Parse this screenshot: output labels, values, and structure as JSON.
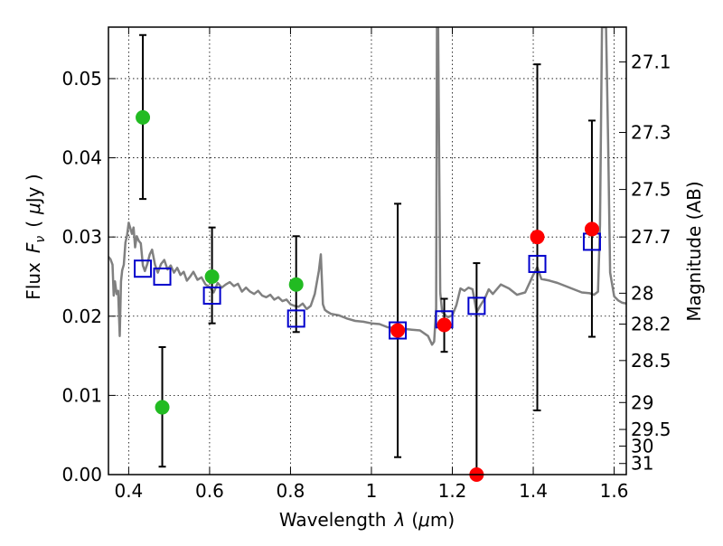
{
  "chart_data": {
    "type": "scatter",
    "xlabel": "Wavelength",
    "xlabel_symbol": "λ",
    "xlabel_unit_open": "(",
    "xlabel_unit_mu": "μ",
    "xlabel_unit_rest": "m)",
    "ylabel": "Flux",
    "ylabel_symbol": "F",
    "ylabel_subscript": "ν",
    "ylabel_unit_open": "(",
    "ylabel_unit_mu": "μ",
    "ylabel_unit_rest": "Jy )",
    "y2label": "Magnitude (AB)",
    "xlim": [
      0.35,
      1.63
    ],
    "ylim": [
      0.0,
      0.0565
    ],
    "grid": true,
    "x_ticks": [
      0.4,
      0.6,
      0.8,
      1.0,
      1.2,
      1.4,
      1.6
    ],
    "x_tick_labels": [
      "0.4",
      "0.6",
      "0.8",
      "1",
      "1.2",
      "1.4",
      "1.6"
    ],
    "y_ticks": [
      0.0,
      0.01,
      0.02,
      0.03,
      0.04,
      0.05
    ],
    "y_tick_labels": [
      "0.00",
      "0.01",
      "0.02",
      "0.03",
      "0.04",
      "0.05"
    ],
    "y2_ticks": [
      {
        "label": "27.1",
        "flux": 0.0521
      },
      {
        "label": "27.3",
        "flux": 0.0432
      },
      {
        "label": "27.5",
        "flux": 0.036
      },
      {
        "label": "27.7",
        "flux": 0.03
      },
      {
        "label": "28",
        "flux": 0.0229
      },
      {
        "label": "28.2",
        "flux": 0.019
      },
      {
        "label": "28.5",
        "flux": 0.0144
      },
      {
        "label": "29",
        "flux": 0.0091
      },
      {
        "label": "29.5",
        "flux": 0.0057
      },
      {
        "label": "30",
        "flux": 0.0036
      },
      {
        "label": "31",
        "flux": 0.0014
      }
    ],
    "series": [
      {
        "marker": "circle",
        "color": "#22bb22",
        "points": [
          {
            "x": 0.435,
            "y": 0.0451,
            "lo": 0.0348,
            "hi": 0.0555
          },
          {
            "x": 0.483,
            "y": 0.0085,
            "lo": 0.001,
            "hi": 0.0161
          },
          {
            "x": 0.606,
            "y": 0.025,
            "lo": 0.0191,
            "hi": 0.0312
          },
          {
            "x": 0.814,
            "y": 0.024,
            "lo": 0.018,
            "hi": 0.0301
          }
        ]
      },
      {
        "marker": "circle",
        "color": "#ff0000",
        "points": [
          {
            "x": 1.065,
            "y": 0.0182,
            "lo": 0.0022,
            "hi": 0.0342
          },
          {
            "x": 1.18,
            "y": 0.0189,
            "lo": 0.0155,
            "hi": 0.0222
          },
          {
            "x": 1.26,
            "y": 0.0,
            "lo": 0.0,
            "hi": 0.0267
          },
          {
            "x": 1.41,
            "y": 0.03,
            "lo": 0.0081,
            "hi": 0.0518
          },
          {
            "x": 1.545,
            "y": 0.031,
            "lo": 0.0174,
            "hi": 0.0447
          }
        ]
      },
      {
        "marker": "open-square",
        "color": "#0000cc",
        "points": [
          {
            "x": 0.435,
            "y": 0.026
          },
          {
            "x": 0.483,
            "y": 0.025
          },
          {
            "x": 0.606,
            "y": 0.0226
          },
          {
            "x": 0.814,
            "y": 0.0197
          },
          {
            "x": 1.065,
            "y": 0.0182
          },
          {
            "x": 1.18,
            "y": 0.0196
          },
          {
            "x": 1.26,
            "y": 0.0213
          },
          {
            "x": 1.41,
            "y": 0.0266
          },
          {
            "x": 1.545,
            "y": 0.0294
          }
        ]
      },
      {
        "type": "line",
        "color": "#808080",
        "x": [
          0.35,
          0.355,
          0.36,
          0.363,
          0.366,
          0.37,
          0.374,
          0.378,
          0.381,
          0.384,
          0.388,
          0.392,
          0.396,
          0.4,
          0.404,
          0.408,
          0.412,
          0.416,
          0.42,
          0.425,
          0.43,
          0.435,
          0.44,
          0.446,
          0.452,
          0.458,
          0.465,
          0.472,
          0.48,
          0.488,
          0.496,
          0.504,
          0.512,
          0.52,
          0.528,
          0.536,
          0.544,
          0.552,
          0.56,
          0.57,
          0.58,
          0.59,
          0.6,
          0.61,
          0.62,
          0.63,
          0.64,
          0.65,
          0.66,
          0.67,
          0.68,
          0.69,
          0.7,
          0.71,
          0.72,
          0.73,
          0.74,
          0.75,
          0.76,
          0.77,
          0.78,
          0.79,
          0.8,
          0.81,
          0.82,
          0.83,
          0.84,
          0.85,
          0.86,
          0.87,
          0.875,
          0.88,
          0.885,
          0.89,
          0.9,
          0.92,
          0.94,
          0.96,
          0.98,
          1.0,
          1.02,
          1.04,
          1.06,
          1.08,
          1.1,
          1.12,
          1.14,
          1.15,
          1.155,
          1.16,
          1.162,
          1.165,
          1.17,
          1.175,
          1.18,
          1.185,
          1.19,
          1.2,
          1.21,
          1.22,
          1.23,
          1.24,
          1.25,
          1.26,
          1.27,
          1.28,
          1.29,
          1.3,
          1.32,
          1.34,
          1.36,
          1.38,
          1.4,
          1.41,
          1.42,
          1.44,
          1.46,
          1.48,
          1.5,
          1.52,
          1.54,
          1.55,
          1.56,
          1.565,
          1.57,
          1.575,
          1.58,
          1.585,
          1.59,
          1.6,
          1.61,
          1.62,
          1.63
        ],
        "y": [
          0.0275,
          0.0272,
          0.0265,
          0.0226,
          0.0244,
          0.0228,
          0.0232,
          0.0175,
          0.0244,
          0.0258,
          0.0265,
          0.0293,
          0.0302,
          0.0318,
          0.0311,
          0.0304,
          0.0312,
          0.0287,
          0.0301,
          0.0295,
          0.0292,
          0.0264,
          0.0257,
          0.0266,
          0.0278,
          0.0284,
          0.0265,
          0.0255,
          0.0266,
          0.0271,
          0.0259,
          0.0264,
          0.0255,
          0.0261,
          0.0252,
          0.0256,
          0.0245,
          0.025,
          0.0256,
          0.0246,
          0.0249,
          0.024,
          0.0237,
          0.023,
          0.0242,
          0.0236,
          0.024,
          0.0243,
          0.0238,
          0.0241,
          0.0231,
          0.0236,
          0.0231,
          0.0228,
          0.0232,
          0.0226,
          0.0224,
          0.0227,
          0.0221,
          0.0224,
          0.0219,
          0.0221,
          0.0215,
          0.0213,
          0.0212,
          0.0216,
          0.0209,
          0.0213,
          0.0228,
          0.0257,
          0.0278,
          0.0215,
          0.0208,
          0.0206,
          0.0203,
          0.0201,
          0.0197,
          0.0194,
          0.0193,
          0.0191,
          0.019,
          0.0186,
          0.0185,
          0.0184,
          0.0183,
          0.0182,
          0.0175,
          0.0164,
          0.0168,
          0.021,
          0.0565,
          0.0565,
          0.023,
          0.0205,
          0.0203,
          0.02,
          0.0199,
          0.0201,
          0.0214,
          0.0235,
          0.0232,
          0.0236,
          0.0234,
          0.0205,
          0.0214,
          0.0222,
          0.0234,
          0.0228,
          0.024,
          0.0235,
          0.0227,
          0.023,
          0.0252,
          0.0262,
          0.0247,
          0.0245,
          0.0242,
          0.0238,
          0.0234,
          0.023,
          0.0229,
          0.0227,
          0.0231,
          0.0315,
          0.0565,
          0.0565,
          0.0565,
          0.042,
          0.0255,
          0.0225,
          0.022,
          0.0217,
          0.0216
        ]
      }
    ]
  }
}
